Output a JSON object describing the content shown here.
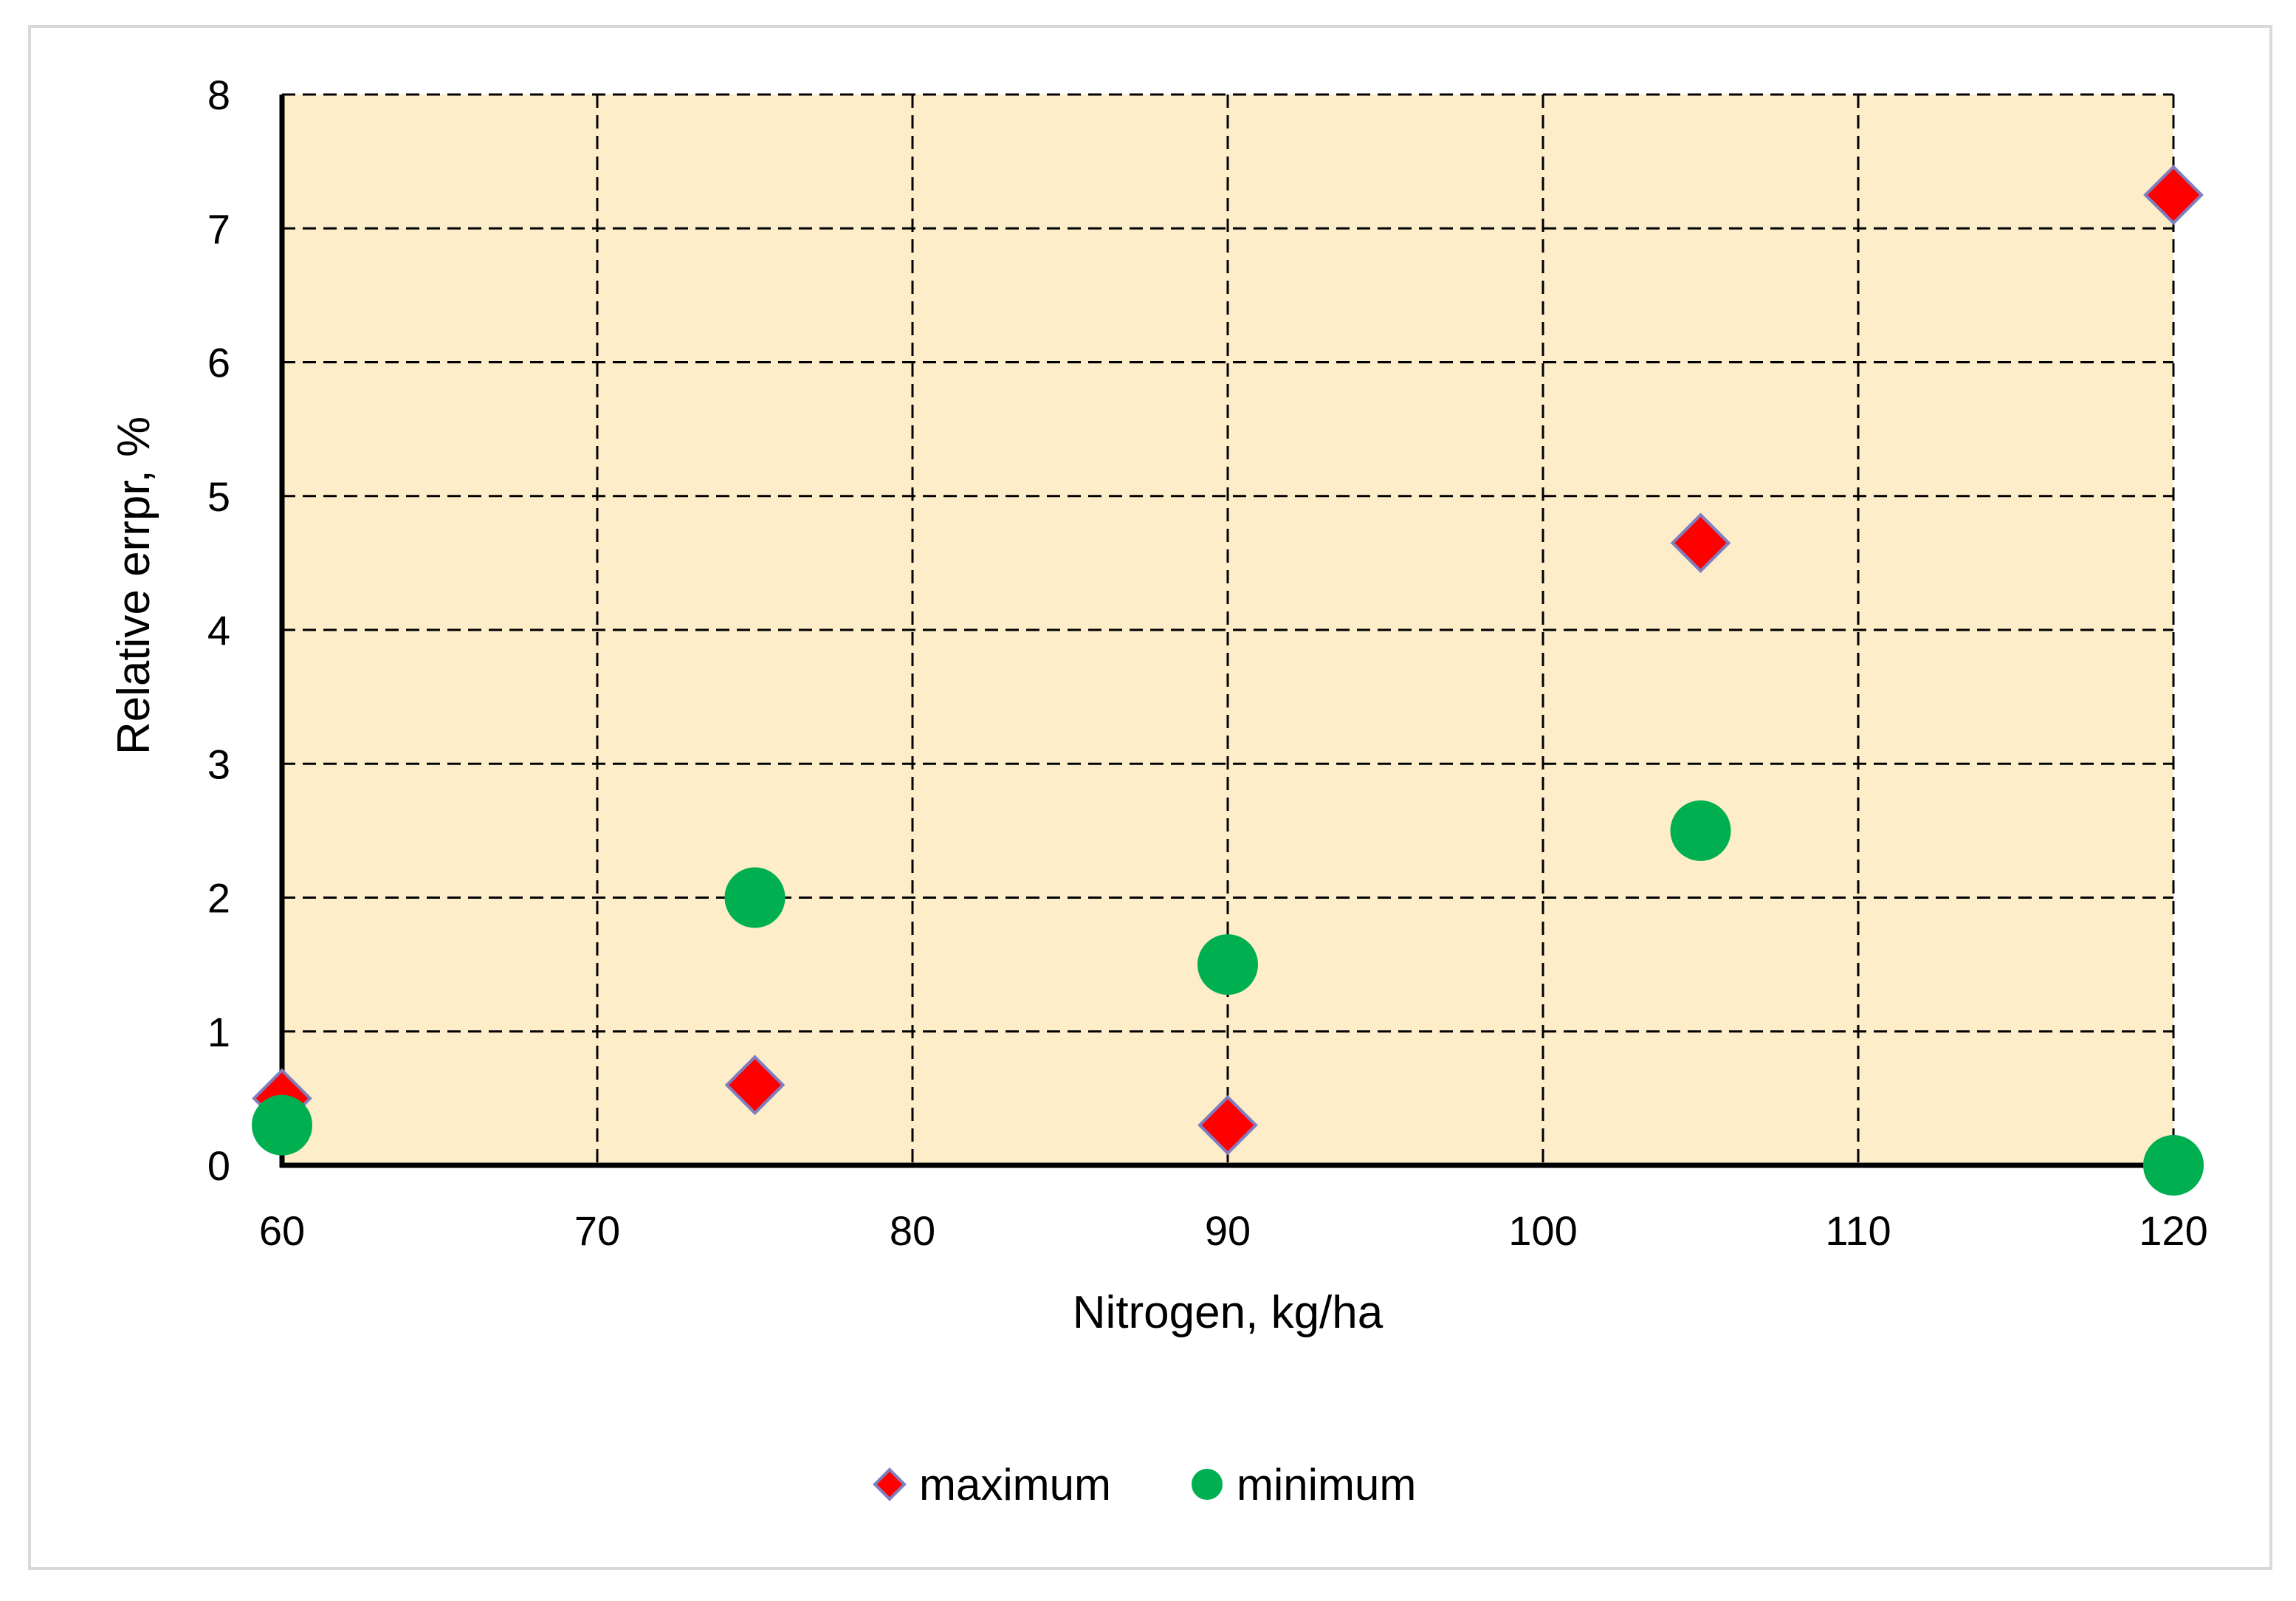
{
  "chart_data": {
    "type": "scatter",
    "title": "",
    "xlabel": "Nitrogen, kg/ha",
    "ylabel": "Relative errpr, %",
    "xlim": [
      60,
      120
    ],
    "ylim": [
      0,
      8
    ],
    "x_ticks": [
      60,
      70,
      80,
      90,
      100,
      110,
      120
    ],
    "y_ticks": [
      0,
      1,
      2,
      3,
      4,
      5,
      6,
      7,
      8
    ],
    "grid": true,
    "grid_style": "dashed",
    "plot_background": "#fdedc9",
    "legend_position": "bottom-center",
    "series": [
      {
        "name": "maximum",
        "marker": "diamond",
        "color": "#ff0000",
        "edge_color": "#7f7fbf",
        "points": [
          {
            "x": 60,
            "y": 0.5
          },
          {
            "x": 75,
            "y": 0.6
          },
          {
            "x": 90,
            "y": 0.3
          },
          {
            "x": 105,
            "y": 4.65
          },
          {
            "x": 120,
            "y": 7.25
          }
        ]
      },
      {
        "name": "minimum",
        "marker": "circle",
        "color": "#00b050",
        "edge_color": "#00b050",
        "points": [
          {
            "x": 60,
            "y": 0.3
          },
          {
            "x": 75,
            "y": 2.0
          },
          {
            "x": 90,
            "y": 1.5
          },
          {
            "x": 105,
            "y": 2.5
          },
          {
            "x": 120,
            "y": 0.0
          }
        ]
      }
    ]
  }
}
